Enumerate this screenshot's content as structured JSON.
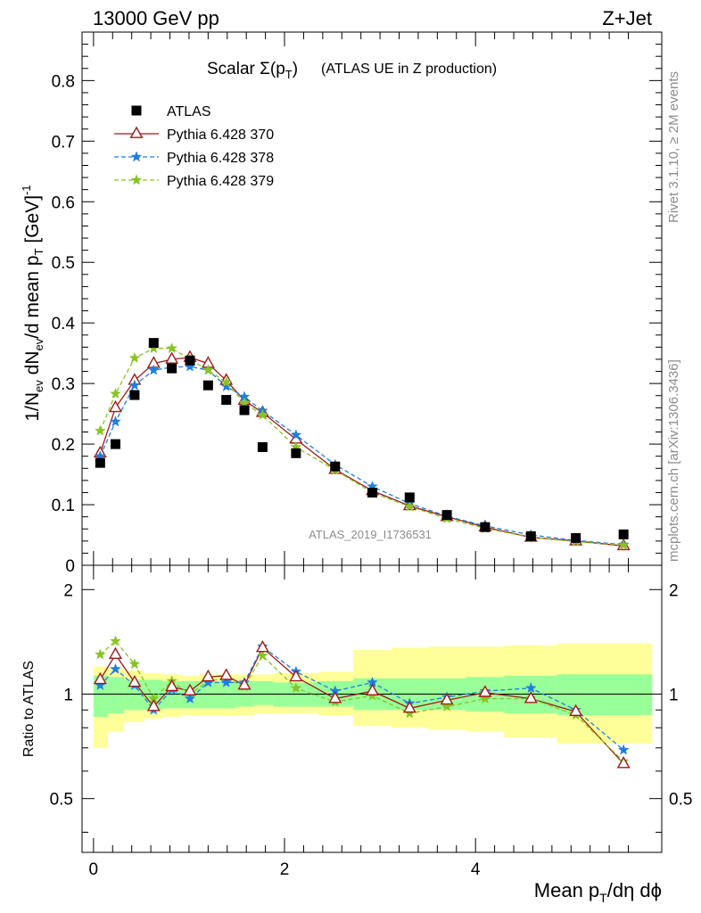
{
  "header": {
    "left": "13000 GeV pp",
    "right": "Z+Jet"
  },
  "side_text": {
    "rivet": "Rivet 3.1.10, ≥ 2M events",
    "mcplots": "mcplots.cern.ch [arXiv:1306.3436]"
  },
  "chart_data": [
    {
      "type": "scatter",
      "panel": "main",
      "title_main": "Scalar Σ(p",
      "title_sub": "T",
      "title_close": ")",
      "title_rest": "(ATLAS UE in Z production)",
      "watermark": "ATLAS_2019_I1736531",
      "ylabel": "1/N_ev dN_ev/d mean p_T [GeV]^-1",
      "xlim": [
        -0.12,
        5.95
      ],
      "ylim": [
        0,
        0.88
      ],
      "yticks": [
        0,
        0.1,
        0.2,
        0.3,
        0.4,
        0.5,
        0.6,
        0.7,
        0.8
      ],
      "ytick_labels": [
        "0",
        "0.1",
        "0.2",
        "0.3",
        "0.4",
        "0.5",
        "0.6",
        "0.7",
        "0.8"
      ],
      "legend_position": "top-left",
      "x": [
        0.07,
        0.23,
        0.43,
        0.63,
        0.82,
        1.01,
        1.2,
        1.39,
        1.58,
        1.77,
        2.12,
        2.53,
        2.92,
        3.31,
        3.7,
        4.1,
        4.58,
        5.05,
        5.55
      ],
      "series": [
        {
          "name": "ATLAS",
          "color": "#000000",
          "marker": "square",
          "line": "none",
          "values": [
            0.169,
            0.2,
            0.281,
            0.367,
            0.325,
            0.338,
            0.297,
            0.273,
            0.256,
            0.195,
            0.185,
            0.163,
            0.12,
            0.112,
            0.083,
            0.063,
            0.048,
            0.045,
            0.051
          ]
        },
        {
          "name": "Pythia 6.428 370",
          "color": "#9e1a1a",
          "marker": "triangle-open",
          "line": "solid",
          "values": [
            0.185,
            0.26,
            0.305,
            0.333,
            0.34,
            0.343,
            0.333,
            0.305,
            0.272,
            0.252,
            0.208,
            0.158,
            0.123,
            0.098,
            0.08,
            0.063,
            0.046,
            0.04,
            0.032
          ]
        },
        {
          "name": "Pythia 6.428 378",
          "color": "#1f7fe0",
          "marker": "star",
          "line": "dashed",
          "values": [
            0.18,
            0.237,
            0.297,
            0.322,
            0.327,
            0.328,
            0.322,
            0.295,
            0.278,
            0.255,
            0.215,
            0.166,
            0.13,
            0.102,
            0.081,
            0.065,
            0.05,
            0.041,
            0.034
          ]
        },
        {
          "name": "Pythia 6.428 379",
          "color": "#88c425",
          "marker": "star",
          "line": "dashed",
          "values": [
            0.222,
            0.283,
            0.342,
            0.358,
            0.358,
            0.34,
            0.322,
            0.302,
            0.268,
            0.248,
            0.195,
            0.157,
            0.12,
            0.097,
            0.077,
            0.061,
            0.046,
            0.039,
            0.033
          ]
        }
      ]
    },
    {
      "type": "line",
      "panel": "ratio",
      "ylabel": "Ratio to ATLAS",
      "xlabel": "Mean p_T/dη dφ",
      "xlim": [
        -0.12,
        5.95
      ],
      "ylim": [
        0.35,
        2.35
      ],
      "yticks": [
        0.5,
        1,
        2
      ],
      "ytick_labels": [
        "0.5",
        "1",
        "2"
      ],
      "xticks": [
        0,
        2,
        4
      ],
      "xtick_labels": [
        "0",
        "2",
        "4"
      ],
      "bin_edges": [
        0,
        0.15,
        0.32,
        0.53,
        0.72,
        0.91,
        1.11,
        1.3,
        1.49,
        1.68,
        1.88,
        2.35,
        2.72,
        3.12,
        3.5,
        3.9,
        4.3,
        4.85,
        5.25,
        5.85
      ],
      "band_inner": [
        [
          0.86,
          1.13
        ],
        [
          0.88,
          1.12
        ],
        [
          0.9,
          1.1
        ],
        [
          0.9,
          1.1
        ],
        [
          0.91,
          1.09
        ],
        [
          0.91,
          1.09
        ],
        [
          0.91,
          1.09
        ],
        [
          0.91,
          1.09
        ],
        [
          0.92,
          1.09
        ],
        [
          0.93,
          1.09
        ],
        [
          0.92,
          1.08
        ],
        [
          0.92,
          1.09
        ],
        [
          0.9,
          1.11
        ],
        [
          0.9,
          1.11
        ],
        [
          0.9,
          1.11
        ],
        [
          0.89,
          1.12
        ],
        [
          0.88,
          1.13
        ],
        [
          0.87,
          1.14
        ],
        [
          0.87,
          1.14
        ]
      ],
      "band_outer": [
        [
          0.7,
          1.2
        ],
        [
          0.78,
          1.19
        ],
        [
          0.83,
          1.17
        ],
        [
          0.85,
          1.15
        ],
        [
          0.86,
          1.14
        ],
        [
          0.87,
          1.13
        ],
        [
          0.87,
          1.14
        ],
        [
          0.87,
          1.14
        ],
        [
          0.87,
          1.14
        ],
        [
          0.88,
          1.14
        ],
        [
          0.88,
          1.15
        ],
        [
          0.87,
          1.16
        ],
        [
          0.81,
          1.34
        ],
        [
          0.8,
          1.36
        ],
        [
          0.79,
          1.37
        ],
        [
          0.78,
          1.37
        ],
        [
          0.75,
          1.38
        ],
        [
          0.72,
          1.4
        ],
        [
          0.72,
          1.4
        ]
      ],
      "x": [
        0.07,
        0.23,
        0.43,
        0.63,
        0.82,
        1.01,
        1.2,
        1.39,
        1.58,
        1.77,
        2.12,
        2.53,
        2.92,
        3.31,
        3.7,
        4.1,
        4.58,
        5.05,
        5.55
      ],
      "series": [
        {
          "name": "Pythia 6.428 370",
          "color": "#9e1a1a",
          "marker": "triangle-open",
          "line": "solid",
          "values": [
            1.1,
            1.3,
            1.08,
            0.92,
            1.05,
            1.02,
            1.12,
            1.13,
            1.06,
            1.36,
            1.12,
            0.97,
            1.02,
            0.91,
            0.96,
            1.01,
            0.97,
            0.89,
            0.63
          ]
        },
        {
          "name": "Pythia 6.428 378",
          "color": "#1f7fe0",
          "marker": "star",
          "line": "dashed",
          "values": [
            1.06,
            1.18,
            1.06,
            0.9,
            1.03,
            0.97,
            1.08,
            1.08,
            1.08,
            1.37,
            1.16,
            1.02,
            1.08,
            0.94,
            0.98,
            1.02,
            1.04,
            0.9,
            0.69
          ]
        },
        {
          "name": "Pythia 6.428 379",
          "color": "#88c425",
          "marker": "star",
          "line": "dashed",
          "values": [
            1.3,
            1.42,
            1.22,
            0.97,
            1.09,
            1.0,
            1.09,
            1.11,
            1.05,
            1.29,
            1.04,
            0.95,
            0.99,
            0.88,
            0.92,
            0.97,
            0.97,
            0.87,
            0.64
          ]
        }
      ]
    }
  ]
}
